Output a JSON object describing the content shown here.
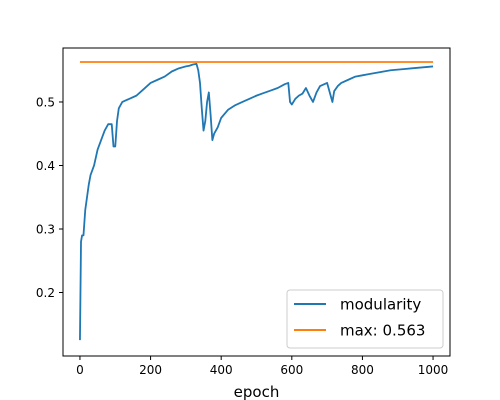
{
  "chart_data": {
    "type": "line",
    "title": "",
    "xlabel": "epoch",
    "ylabel": "",
    "xlim": [
      -48,
      1048
    ],
    "ylim": [
      0.1,
      0.585
    ],
    "xticks": [
      0,
      200,
      400,
      600,
      800,
      1000
    ],
    "yticks": [
      0.2,
      0.3,
      0.4,
      0.5
    ],
    "grid": false,
    "legend_position": "lower-right",
    "series": [
      {
        "name": "modularity",
        "color": "#1f77b4",
        "x": [
          0,
          3,
          6,
          10,
          15,
          20,
          25,
          30,
          40,
          50,
          60,
          70,
          80,
          90,
          95,
          100,
          105,
          110,
          120,
          140,
          160,
          180,
          200,
          220,
          240,
          260,
          280,
          300,
          310,
          320,
          330,
          335,
          340,
          345,
          350,
          355,
          360,
          365,
          370,
          375,
          380,
          390,
          400,
          420,
          440,
          460,
          480,
          500,
          520,
          540,
          560,
          580,
          590,
          595,
          600,
          610,
          620,
          630,
          640,
          650,
          660,
          670,
          680,
          700,
          710,
          715,
          720,
          730,
          740,
          760,
          780,
          800,
          820,
          840,
          860,
          880,
          900,
          920,
          940,
          960,
          980,
          1000
        ],
        "values": [
          0.125,
          0.28,
          0.29,
          0.29,
          0.33,
          0.35,
          0.37,
          0.385,
          0.4,
          0.425,
          0.44,
          0.455,
          0.465,
          0.465,
          0.43,
          0.43,
          0.47,
          0.49,
          0.5,
          0.505,
          0.51,
          0.52,
          0.53,
          0.535,
          0.54,
          0.548,
          0.553,
          0.556,
          0.557,
          0.559,
          0.56,
          0.55,
          0.53,
          0.49,
          0.455,
          0.47,
          0.5,
          0.515,
          0.48,
          0.44,
          0.45,
          0.46,
          0.475,
          0.488,
          0.495,
          0.5,
          0.505,
          0.51,
          0.514,
          0.518,
          0.522,
          0.528,
          0.53,
          0.5,
          0.496,
          0.505,
          0.51,
          0.513,
          0.522,
          0.51,
          0.5,
          0.515,
          0.525,
          0.53,
          0.51,
          0.5,
          0.517,
          0.525,
          0.53,
          0.535,
          0.54,
          0.542,
          0.544,
          0.546,
          0.548,
          0.55,
          0.551,
          0.552,
          0.553,
          0.554,
          0.555,
          0.556
        ]
      },
      {
        "name": "max: 0.563",
        "color": "#ff7f0e",
        "x": [
          0,
          1000
        ],
        "values": [
          0.563,
          0.563
        ]
      }
    ]
  }
}
